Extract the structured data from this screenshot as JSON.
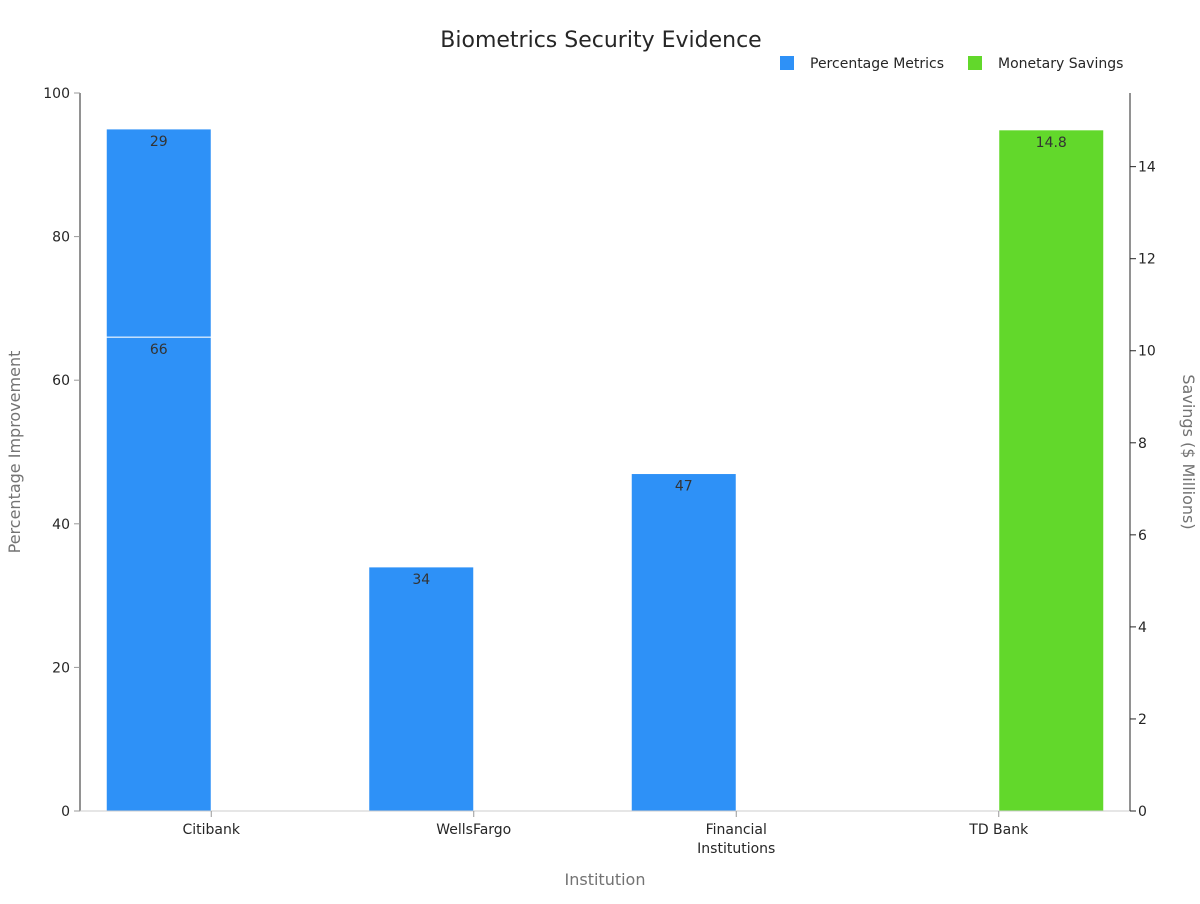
{
  "chart_data": {
    "type": "bar",
    "title": "Biometrics Security Evidence",
    "xlabel": "Institution",
    "ylabel": "Percentage Improvement",
    "y2label": "Savings ($ Millions)",
    "categories": [
      "Citibank",
      "WellsFargo",
      "Financial Institutions",
      "TD Bank"
    ],
    "category_lines": [
      [
        "Citibank"
      ],
      [
        "WellsFargo"
      ],
      [
        "Financial",
        "Institutions"
      ],
      [
        "TD Bank"
      ]
    ],
    "ylim": [
      0,
      100
    ],
    "y2lim": [
      0,
      15.6
    ],
    "yticks": [
      0,
      20,
      40,
      60,
      80,
      100
    ],
    "y2ticks": [
      0,
      2,
      4,
      6,
      8,
      10,
      12,
      14
    ],
    "legend_position": "top-right",
    "grid": false,
    "series": [
      {
        "name": "Percentage Metrics",
        "axis": "left",
        "color": "#2e91f7",
        "stacked": true,
        "segments": [
          {
            "category": "Citibank",
            "values": [
              66,
              29
            ]
          },
          {
            "category": "WellsFargo",
            "values": [
              34
            ]
          },
          {
            "category": "Financial Institutions",
            "values": [
              47
            ]
          }
        ]
      },
      {
        "name": "Monetary Savings",
        "axis": "right",
        "color": "#62d82b",
        "segments": [
          {
            "category": "TD Bank",
            "values": [
              14.8
            ]
          }
        ]
      }
    ]
  }
}
